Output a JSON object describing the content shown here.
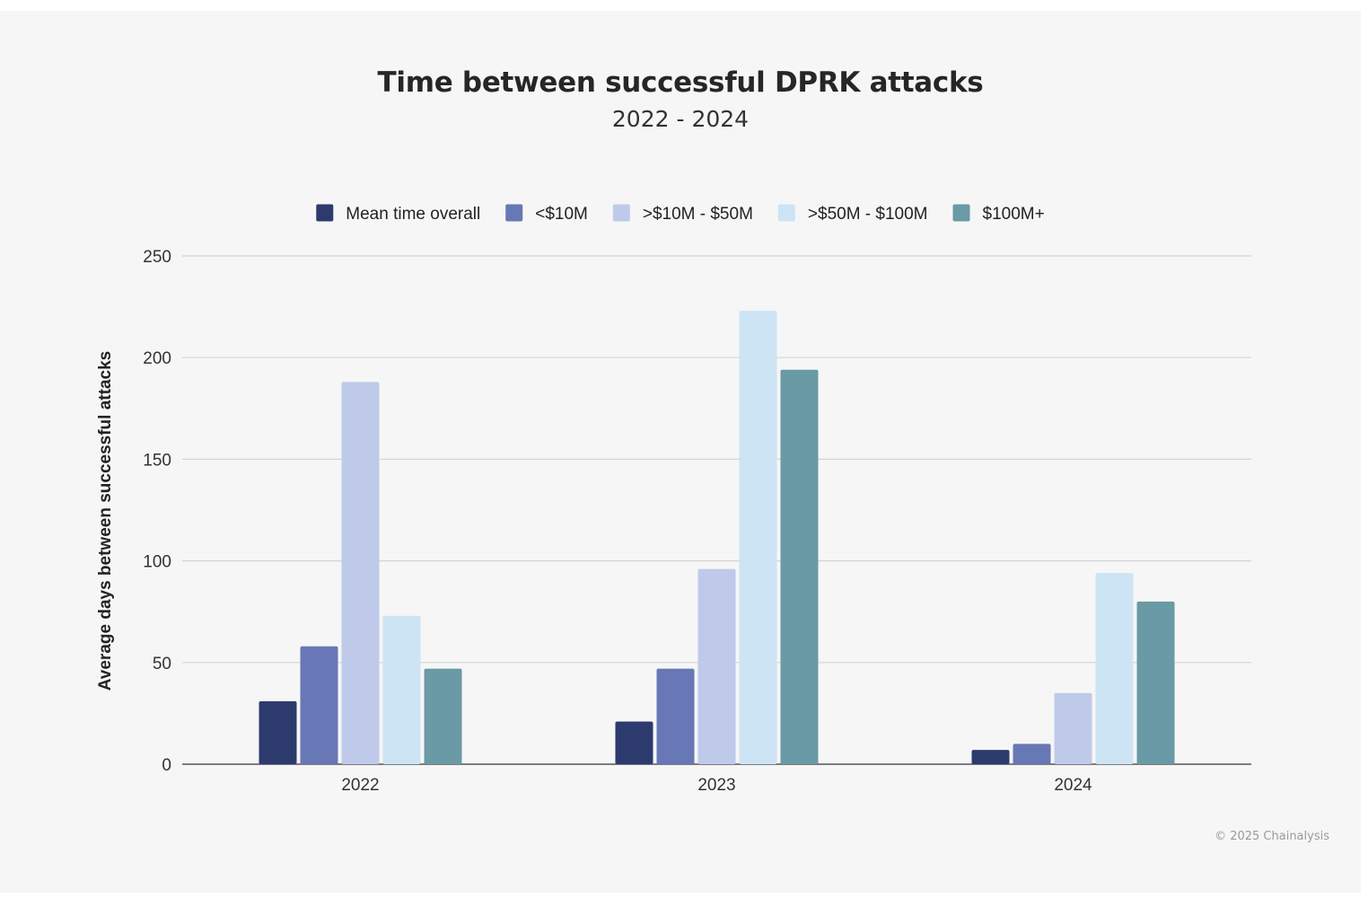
{
  "header": {
    "title": "Time between successful DPRK attacks",
    "subtitle": "2022 - 2024"
  },
  "footer": {
    "copyright": "© 2025 Chainalysis"
  },
  "chart_data": {
    "type": "bar",
    "title": "Time between successful DPRK attacks",
    "subtitle": "2022 - 2024",
    "xlabel": "",
    "ylabel": "Average days between successful attacks",
    "ylim": [
      0,
      250
    ],
    "yticks": [
      0,
      50,
      100,
      150,
      200,
      250
    ],
    "categories": [
      "2022",
      "2023",
      "2024"
    ],
    "series": [
      {
        "name": "Mean time overall",
        "color": "#2d3a6e",
        "values": [
          31,
          21,
          7
        ]
      },
      {
        "name": "<$10M",
        "color": "#6877b5",
        "values": [
          58,
          47,
          10
        ]
      },
      {
        "name": ">$10M - $50M",
        "color": "#bfcaea",
        "values": [
          188,
          96,
          35
        ]
      },
      {
        "name": ">$50M - $100M",
        "color": "#cde4f4",
        "values": [
          73,
          223,
          94
        ]
      },
      {
        "name": "$100M+",
        "color": "#6a9aa5",
        "values": [
          47,
          194,
          80
        ]
      }
    ],
    "grid": true,
    "legend_position": "top"
  }
}
